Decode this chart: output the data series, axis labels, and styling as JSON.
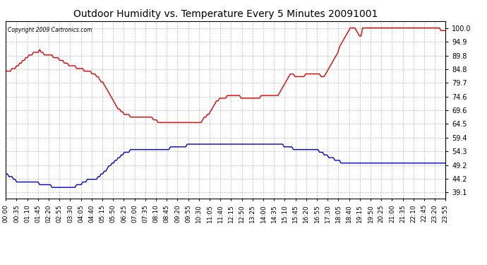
{
  "title": "Outdoor Humidity vs. Temperature Every 5 Minutes 20091001",
  "copyright_text": "Copyright 2009 Cartronics.com",
  "y_ticks": [
    39.1,
    44.2,
    49.2,
    54.3,
    59.4,
    64.5,
    69.6,
    74.6,
    79.7,
    84.8,
    89.8,
    94.9,
    100.0
  ],
  "ylim": [
    36.8,
    102.5
  ],
  "background_color": "#ffffff",
  "grid_color": "#bbbbbb",
  "line_color_humidity": "#dd0000",
  "line_color_temperature": "#0000cc",
  "humidity_data": [
    84,
    84,
    84,
    84,
    85,
    85,
    85,
    86,
    86,
    87,
    87,
    88,
    88,
    89,
    89,
    90,
    90,
    90,
    91,
    91,
    91,
    91,
    92,
    91,
    91,
    90,
    90,
    90,
    90,
    90,
    90,
    89,
    89,
    89,
    89,
    88,
    88,
    88,
    87,
    87,
    87,
    86,
    86,
    86,
    86,
    86,
    85,
    85,
    85,
    85,
    85,
    84,
    84,
    84,
    84,
    84,
    83,
    83,
    83,
    82,
    82,
    81,
    80,
    80,
    79,
    78,
    77,
    76,
    75,
    74,
    73,
    72,
    71,
    70,
    70,
    69,
    69,
    68,
    68,
    68,
    68,
    67,
    67,
    67,
    67,
    67,
    67,
    67,
    67,
    67,
    67,
    67,
    67,
    67,
    67,
    67,
    66,
    66,
    66,
    65,
    65,
    65,
    65,
    65,
    65,
    65,
    65,
    65,
    65,
    65,
    65,
    65,
    65,
    65,
    65,
    65,
    65,
    65,
    65,
    65,
    65,
    65,
    65,
    65,
    65,
    65,
    65,
    65,
    66,
    67,
    67,
    68,
    68,
    69,
    70,
    71,
    72,
    73,
    73,
    74,
    74,
    74,
    74,
    74,
    75,
    75,
    75,
    75,
    75,
    75,
    75,
    75,
    75,
    74,
    74,
    74,
    74,
    74,
    74,
    74,
    74,
    74,
    74,
    74,
    74,
    74,
    75,
    75,
    75,
    75,
    75,
    75,
    75,
    75,
    75,
    75,
    75,
    75,
    76,
    77,
    78,
    79,
    80,
    81,
    82,
    83,
    83,
    83,
    82,
    82,
    82,
    82,
    82,
    82,
    82,
    83,
    83,
    83,
    83,
    83,
    83,
    83,
    83,
    83,
    83,
    82,
    82,
    82,
    83,
    84,
    85,
    86,
    87,
    88,
    89,
    90,
    91,
    93,
    94,
    95,
    96,
    97,
    98,
    99,
    100,
    100,
    100,
    100,
    99,
    98,
    97,
    97,
    100,
    100,
    100,
    100,
    100,
    100,
    100,
    100,
    100,
    100,
    100,
    100,
    100,
    100,
    100,
    100,
    100,
    100,
    100,
    100,
    100,
    100,
    100,
    100,
    100,
    100,
    100,
    100,
    100,
    100,
    100,
    100,
    100,
    100,
    100,
    100,
    100,
    100,
    100,
    100,
    100,
    100,
    100,
    100,
    100,
    100,
    100,
    100,
    100,
    100,
    100,
    99,
    99,
    99,
    99
  ],
  "temperature_data": [
    46,
    46,
    45,
    45,
    45,
    44,
    44,
    43,
    43,
    43,
    43,
    43,
    43,
    43,
    43,
    43,
    43,
    43,
    43,
    43,
    43,
    43,
    42,
    42,
    42,
    42,
    42,
    42,
    42,
    42,
    41,
    41,
    41,
    41,
    41,
    41,
    41,
    41,
    41,
    41,
    41,
    41,
    41,
    41,
    41,
    41,
    42,
    42,
    42,
    42,
    43,
    43,
    43,
    44,
    44,
    44,
    44,
    44,
    44,
    44,
    45,
    45,
    46,
    46,
    47,
    47,
    48,
    49,
    49,
    50,
    50,
    51,
    51,
    52,
    52,
    53,
    53,
    54,
    54,
    54,
    54,
    55,
    55,
    55,
    55,
    55,
    55,
    55,
    55,
    55,
    55,
    55,
    55,
    55,
    55,
    55,
    55,
    55,
    55,
    55,
    55,
    55,
    55,
    55,
    55,
    55,
    55,
    56,
    56,
    56,
    56,
    56,
    56,
    56,
    56,
    56,
    56,
    56,
    57,
    57,
    57,
    57,
    57,
    57,
    57,
    57,
    57,
    57,
    57,
    57,
    57,
    57,
    57,
    57,
    57,
    57,
    57,
    57,
    57,
    57,
    57,
    57,
    57,
    57,
    57,
    57,
    57,
    57,
    57,
    57,
    57,
    57,
    57,
    57,
    57,
    57,
    57,
    57,
    57,
    57,
    57,
    57,
    57,
    57,
    57,
    57,
    57,
    57,
    57,
    57,
    57,
    57,
    57,
    57,
    57,
    57,
    57,
    57,
    57,
    57,
    57,
    56,
    56,
    56,
    56,
    56,
    56,
    55,
    55,
    55,
    55,
    55,
    55,
    55,
    55,
    55,
    55,
    55,
    55,
    55,
    55,
    55,
    55,
    55,
    54,
    54,
    54,
    53,
    53,
    53,
    52,
    52,
    52,
    52,
    51,
    51,
    51,
    51,
    50,
    50,
    50,
    50,
    50,
    50,
    50,
    50,
    50,
    50,
    50,
    50,
    50,
    50,
    50,
    50,
    50,
    50,
    50,
    50,
    50,
    50,
    50,
    50,
    50,
    50,
    50,
    50,
    50,
    50,
    50,
    50,
    50,
    50,
    50,
    50,
    50,
    50,
    50,
    50,
    50,
    50,
    50,
    50,
    50,
    50,
    50,
    50,
    50,
    50,
    50,
    50,
    50,
    50,
    50,
    50,
    50,
    50,
    50,
    50,
    50,
    50,
    50,
    50,
    50,
    50,
    50,
    50,
    50
  ],
  "x_tick_labels": [
    "00:00",
    "00:35",
    "01:10",
    "01:45",
    "02:20",
    "02:55",
    "03:30",
    "04:05",
    "04:40",
    "05:15",
    "05:50",
    "06:25",
    "07:00",
    "07:35",
    "08:10",
    "08:45",
    "09:20",
    "09:55",
    "10:30",
    "11:05",
    "11:40",
    "12:15",
    "12:50",
    "13:25",
    "14:00",
    "14:35",
    "15:10",
    "15:45",
    "16:20",
    "16:55",
    "17:30",
    "18:05",
    "18:40",
    "19:15",
    "19:50",
    "20:25",
    "21:00",
    "21:35",
    "22:10",
    "22:45",
    "23:20",
    "23:55"
  ],
  "title_fontsize": 10,
  "tick_fontsize": 7,
  "xtick_fontsize": 6.5
}
